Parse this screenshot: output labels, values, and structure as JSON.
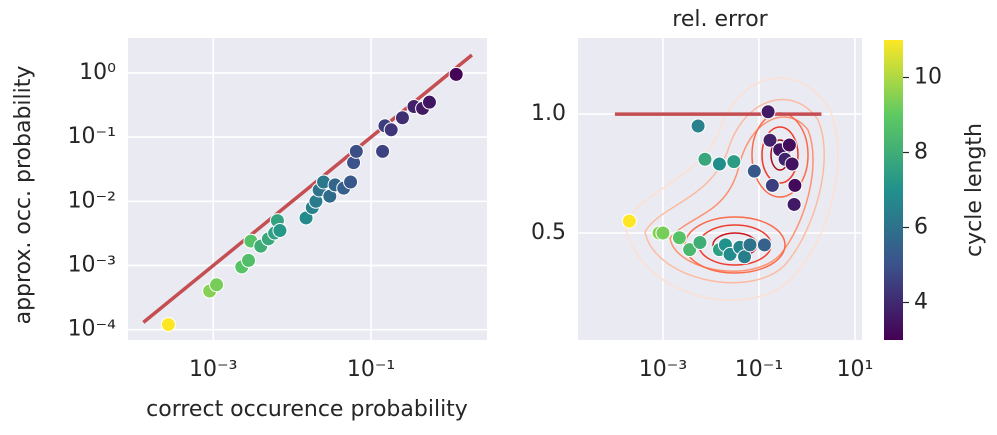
{
  "chart_data": [
    {
      "type": "scatter",
      "xscale": "log",
      "yscale": "log",
      "xlabel": "correct occurence probability",
      "ylabel": "approx. occ. probability",
      "xlim": [
        8.3e-05,
        2.95
      ],
      "ylim": [
        6.9e-05,
        3.5
      ],
      "xticks": [
        {
          "value": 0.001,
          "label": "10⁻³"
        },
        {
          "value": 0.1,
          "label": "10⁻¹"
        }
      ],
      "yticks": [
        {
          "value": 1,
          "label": "10⁰"
        },
        {
          "value": 0.1,
          "label": "10⁻¹"
        },
        {
          "value": 0.01,
          "label": "10⁻²"
        },
        {
          "value": 0.001,
          "label": "10⁻³"
        },
        {
          "value": 0.0001,
          "label": "10⁻⁴"
        }
      ],
      "grid": true,
      "x": [
        0.00027,
        0.0009,
        0.0011,
        0.0023,
        0.0028,
        0.003,
        0.004,
        0.005,
        0.006,
        0.0065,
        0.007,
        0.015,
        0.018,
        0.02,
        0.022,
        0.025,
        0.03,
        0.035,
        0.045,
        0.055,
        0.06,
        0.065,
        0.14,
        0.15,
        0.18,
        0.25,
        0.35,
        0.45,
        0.55,
        1.2
      ],
      "y": [
        0.00012,
        0.0004,
        0.0005,
        0.00095,
        0.0012,
        0.0024,
        0.002,
        0.0026,
        0.0032,
        0.005,
        0.0035,
        0.0055,
        0.008,
        0.01,
        0.015,
        0.02,
        0.012,
        0.018,
        0.016,
        0.02,
        0.04,
        0.06,
        0.06,
        0.15,
        0.13,
        0.2,
        0.3,
        0.28,
        0.35,
        0.95
      ],
      "c": [
        11,
        9.5,
        9.3,
        8.8,
        8.6,
        8.7,
        8,
        7.8,
        7.5,
        7.6,
        7.2,
        6.8,
        6.5,
        6.3,
        6,
        6.2,
        5.8,
        5.6,
        5.4,
        5.2,
        5,
        4.9,
        4.6,
        4.5,
        4.3,
        4.1,
        3.8,
        3.6,
        3.5,
        3.1
      ],
      "lines": [
        {
          "color": "#c44e52",
          "x": [
            0.00013,
            1.9
          ],
          "y": [
            0.00013,
            1.9
          ]
        }
      ]
    },
    {
      "type": "scatter",
      "xscale": "log",
      "yscale": "linear",
      "title": "rel. error",
      "xlim": [
        1.7e-05,
        14
      ],
      "ylim": [
        0.05,
        1.32
      ],
      "xticks": [
        {
          "value": 0.001,
          "label": "10⁻³"
        },
        {
          "value": 0.1,
          "label": "10⁻¹"
        },
        {
          "value": 10,
          "label": "10¹"
        }
      ],
      "yticks": [
        {
          "value": 1,
          "label": "1.0"
        },
        0.5
      ],
      "grid": true,
      "x": [
        0.0002,
        0.00083,
        0.001,
        0.0022,
        0.0036,
        0.0059,
        0.0075,
        0.0054,
        0.015,
        0.02,
        0.025,
        0.04,
        0.05,
        0.03,
        0.015,
        0.065,
        0.08,
        0.155,
        0.17,
        0.19,
        0.27,
        0.35,
        0.43,
        0.49,
        0.56,
        0.54,
        0.13
      ],
      "y": [
        0.55,
        0.5,
        0.5,
        0.48,
        0.43,
        0.46,
        0.81,
        0.95,
        0.43,
        0.45,
        0.41,
        0.44,
        0.4,
        0.8,
        0.79,
        0.45,
        0.76,
        1.01,
        0.89,
        0.7,
        0.85,
        0.81,
        0.87,
        0.79,
        0.7,
        0.62,
        0.45
      ],
      "c": [
        11,
        9.5,
        9.3,
        8.8,
        8.4,
        8,
        7.8,
        6.5,
        7.5,
        7,
        6.8,
        6.6,
        6.4,
        7.4,
        6.9,
        6,
        5.2,
        3.6,
        3.8,
        4.5,
        3.5,
        3.9,
        3.3,
        3.4,
        3.2,
        3.6,
        5.5
      ],
      "lines": [
        {
          "color": "#c44e52",
          "x": [
            0.0001,
            2
          ],
          "y": [
            1,
            1
          ]
        }
      ]
    }
  ],
  "colorbar": {
    "label": "cycle length",
    "colormap": "viridis",
    "lim": [
      3,
      11
    ],
    "ticks": [
      4,
      6,
      8,
      10
    ]
  }
}
